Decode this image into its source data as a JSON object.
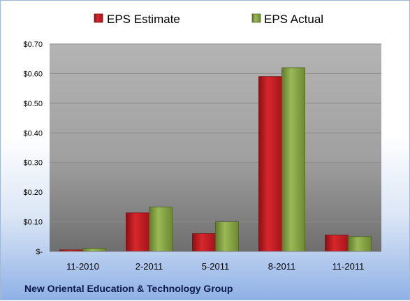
{
  "chart_data": {
    "type": "bar",
    "title": "",
    "xlabel": "",
    "ylabel": "",
    "categories": [
      "11-2010",
      "2-2011",
      "5-2011",
      "8-2011",
      "11-2011"
    ],
    "series": [
      {
        "name": "EPS Estimate",
        "values": [
          0.005,
          0.13,
          0.06,
          0.59,
          0.055
        ],
        "color": "#c4161c"
      },
      {
        "name": "EPS Actual",
        "values": [
          0.01,
          0.15,
          0.1,
          0.62,
          0.05
        ],
        "color": "#8aa646"
      }
    ],
    "ylim": [
      0,
      0.7
    ],
    "y_ticks": [
      {
        "value": 0.0,
        "label": "$-"
      },
      {
        "value": 0.1,
        "label": "$0.10"
      },
      {
        "value": 0.2,
        "label": "$0.20"
      },
      {
        "value": 0.3,
        "label": "$0.30"
      },
      {
        "value": 0.4,
        "label": "$0.40"
      },
      {
        "value": 0.5,
        "label": "$0.50"
      },
      {
        "value": 0.6,
        "label": "$0.60"
      },
      {
        "value": 0.7,
        "label": "$0.70"
      }
    ],
    "grid": true,
    "legend_position": "top",
    "plot_background": "#a8a8a8"
  },
  "company_name": "New Oriental Education & Technology Group"
}
